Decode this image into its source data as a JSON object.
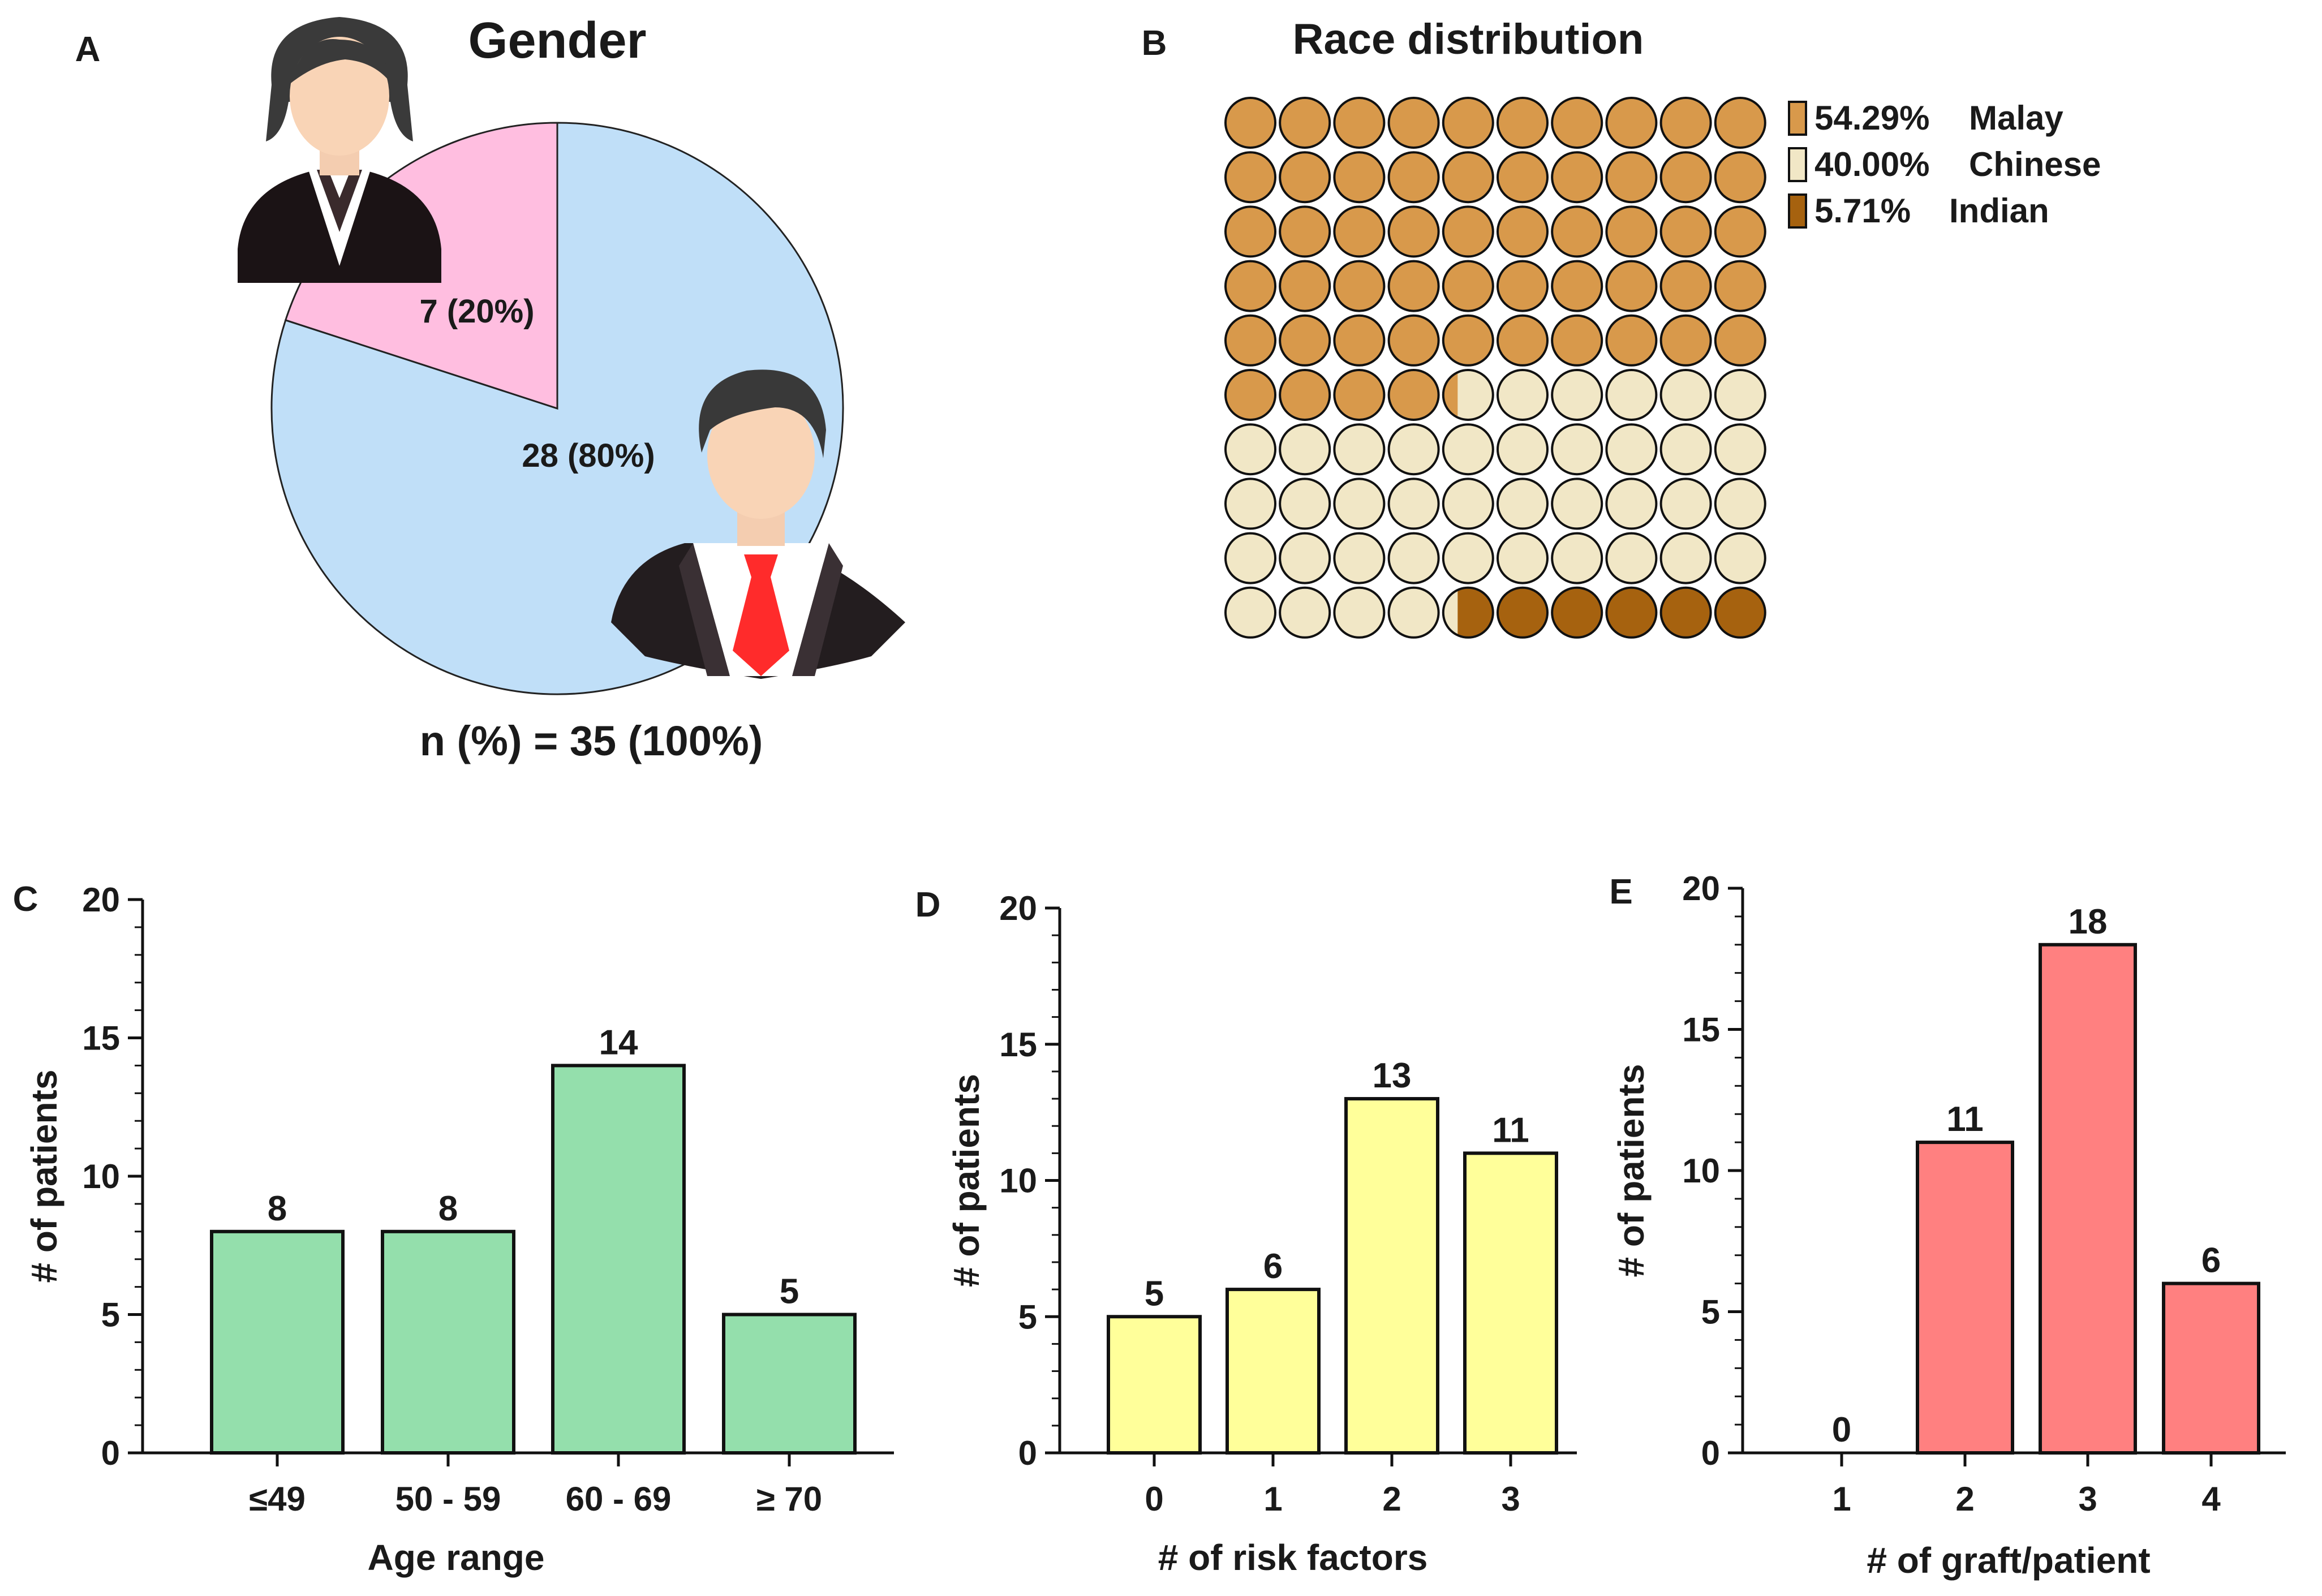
{
  "colors": {
    "female": "#FFBEE0",
    "male": "#C0DFF8",
    "malay": "#D8994B",
    "chinese": "#F1E7C6",
    "indian": "#A6620F",
    "age_bars": "#94DFAC",
    "risk_bars": "#FFFF9A",
    "graft_bars": "#FF8080",
    "stroke": "#111111"
  },
  "panelA": {
    "letter": "A",
    "title": "Gender",
    "footer": "n (%) = 35 (100%)",
    "female_icon": "female-avatar-icon",
    "male_icon": "male-avatar-icon"
  },
  "panelB": {
    "letter": "B",
    "title": "Race distribution"
  },
  "panelC": {
    "letter": "C"
  },
  "panelD": {
    "letter": "D"
  },
  "panelE": {
    "letter": "E"
  },
  "chart_data": [
    {
      "id": "A",
      "type": "pie",
      "title": "Gender",
      "total_label": "n (%) = 35 (100%)",
      "slices": [
        {
          "name": "Female",
          "value": 7,
          "percent": 20,
          "label": "7 (20%)",
          "color": "#FFBEE0"
        },
        {
          "name": "Male",
          "value": 28,
          "percent": 80,
          "label": "28 (80%)",
          "color": "#C0DFF8"
        }
      ]
    },
    {
      "id": "B",
      "type": "waffle",
      "title": "Race distribution",
      "grid": [
        10,
        10
      ],
      "series": [
        {
          "name": "Malay",
          "percent": 54.29,
          "label": "54.29%",
          "color": "#D8994B"
        },
        {
          "name": "Chinese",
          "percent": 40.0,
          "label": "40.00%",
          "color": "#F1E7C6"
        },
        {
          "name": "Indian",
          "percent": 5.71,
          "label": "5.71%",
          "color": "#A6620F"
        }
      ]
    },
    {
      "id": "C",
      "type": "bar",
      "categories": [
        "≤49",
        "50 - 59",
        "60 - 69",
        "≥ 70"
      ],
      "values": [
        8,
        8,
        14,
        5
      ],
      "xlabel": "Age range",
      "ylabel": "# of patients",
      "ylim": [
        0,
        20
      ],
      "yticks": [
        0,
        5,
        10,
        15,
        20
      ],
      "color": "#94DFAC"
    },
    {
      "id": "D",
      "type": "bar",
      "categories": [
        "0",
        "1",
        "2",
        "3"
      ],
      "values": [
        5,
        6,
        13,
        11
      ],
      "xlabel": "# of risk factors",
      "ylabel": "# of patients",
      "ylim": [
        0,
        20
      ],
      "yticks": [
        0,
        5,
        10,
        15,
        20
      ],
      "color": "#FFFF9A"
    },
    {
      "id": "E",
      "type": "bar",
      "categories": [
        "1",
        "2",
        "3",
        "4"
      ],
      "values": [
        0,
        11,
        18,
        6
      ],
      "xlabel": "# of graft/patient",
      "ylabel": "# of patients",
      "ylim": [
        0,
        20
      ],
      "yticks": [
        0,
        5,
        10,
        15,
        20
      ],
      "color": "#FF8080"
    }
  ]
}
